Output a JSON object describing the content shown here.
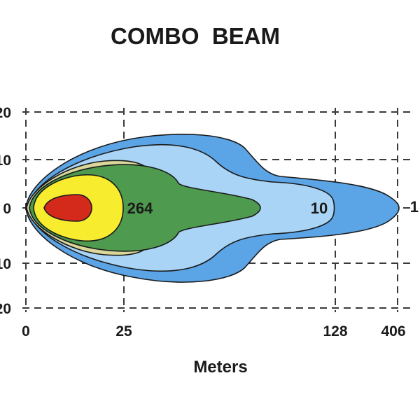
{
  "chart_data": {
    "type": "area",
    "title": "COMBO  BEAM",
    "xlabel": "Meters",
    "ylabel": "",
    "grid": true,
    "x_ticks": [
      "0",
      "25",
      "128",
      "406"
    ],
    "y_ticks": [
      "20",
      "10",
      "0",
      "10",
      "20"
    ],
    "zones": [
      {
        "color": "#5ba4e6",
        "label": "1",
        "reach_tick": "406"
      },
      {
        "color": "#a9d4f5",
        "label": "10",
        "reach_tick": "128"
      },
      {
        "color": "#d9d79a",
        "label": "",
        "reach_tick": "25"
      },
      {
        "color": "#4e9a4e",
        "label": "264",
        "reach_tick": "25"
      },
      {
        "color": "#f7ec2e",
        "label": "",
        "reach_tick": ""
      },
      {
        "color": "#d42a1c",
        "label": "",
        "reach_tick": ""
      }
    ]
  }
}
